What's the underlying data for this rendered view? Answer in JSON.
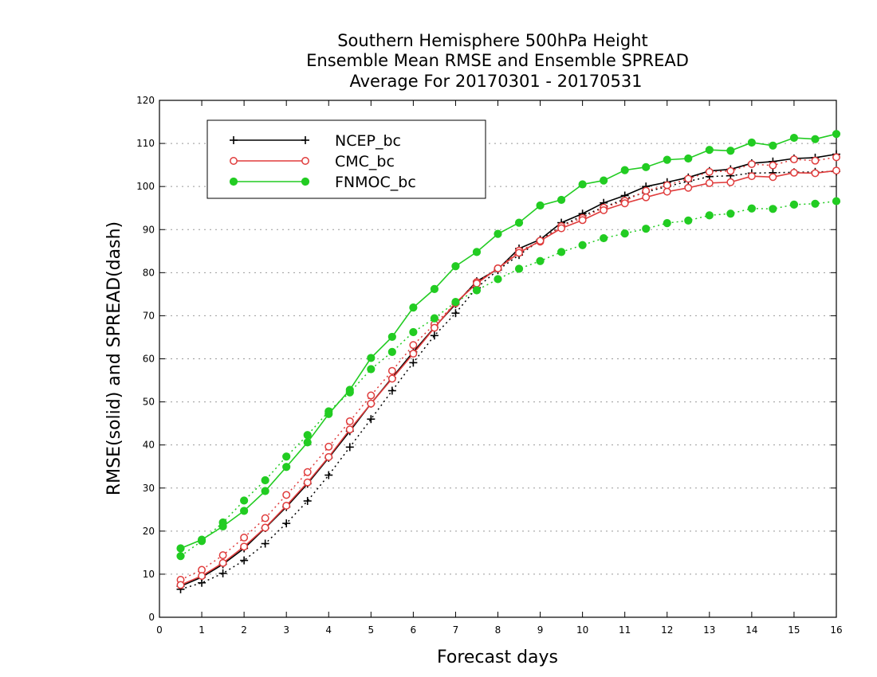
{
  "chart_data": {
    "type": "line",
    "title": [
      "Southern Hemisphere 500hPa Height",
      "Ensemble Mean RMSE and Ensemble SPREAD",
      "Average For 20170301 - 20170531"
    ],
    "xlabel": "Forecast days",
    "ylabel": "RMSE(solid) and SPREAD(dash)",
    "xlim": [
      0,
      16
    ],
    "ylim": [
      0,
      120
    ],
    "xticks": [
      0,
      1,
      2,
      3,
      4,
      5,
      6,
      7,
      8,
      9,
      10,
      11,
      12,
      13,
      14,
      15,
      16
    ],
    "yticks": [
      0,
      10,
      20,
      30,
      40,
      50,
      60,
      70,
      80,
      90,
      100,
      110,
      120
    ],
    "grid": "horizontal dotted",
    "legend_position": "top-left",
    "x": [
      0.5,
      1,
      1.5,
      2,
      2.5,
      3,
      3.5,
      4,
      4.5,
      5,
      5.5,
      6,
      6.5,
      7,
      7.5,
      8,
      8.5,
      9,
      9.5,
      10,
      10.5,
      11,
      11.5,
      12,
      12.5,
      13,
      13.5,
      14,
      14.5,
      15,
      15.5,
      16
    ],
    "series": [
      {
        "name": "NCEP_bc",
        "color": "#000000",
        "marker": "plus",
        "rmse": [
          7.2,
          9.3,
          12.3,
          16.0,
          20.7,
          25.6,
          31.0,
          37.0,
          43.2,
          49.6,
          55.6,
          61.6,
          67.3,
          72.7,
          78.0,
          80.8,
          85.6,
          87.7,
          91.6,
          93.7,
          96.2,
          97.9,
          100.0,
          101.0,
          102.1,
          103.6,
          104.0,
          105.4,
          105.8,
          106.5,
          106.7,
          107.5
        ],
        "spread": [
          6.5,
          8.0,
          10.2,
          13.2,
          17.1,
          21.8,
          27.0,
          33.0,
          39.5,
          46.0,
          52.6,
          59.1,
          65.4,
          70.6,
          76.5,
          80.6,
          84.1,
          87.5,
          90.9,
          93.2,
          95.2,
          97.1,
          98.7,
          100.0,
          101.2,
          102.3,
          102.5,
          103.1,
          103.2,
          103.3,
          103.4,
          103.5
        ]
      },
      {
        "name": "CMC_bc",
        "color": "#e03c3c",
        "marker": "open-circle",
        "rmse": [
          7.5,
          9.6,
          12.6,
          16.4,
          20.8,
          25.9,
          31.3,
          37.2,
          43.6,
          49.6,
          55.4,
          61.2,
          67.2,
          73.0,
          77.5,
          81.0,
          84.6,
          87.4,
          90.3,
          92.2,
          94.5,
          96.1,
          97.5,
          98.8,
          99.7,
          100.8,
          101.0,
          102.4,
          102.2,
          103.2,
          103.1,
          103.7
        ],
        "spread": [
          8.7,
          11.0,
          14.4,
          18.5,
          23.0,
          28.4,
          33.7,
          39.6,
          45.5,
          51.5,
          57.2,
          63.2,
          68.0,
          72.9,
          77.8,
          81.0,
          85.1,
          87.2,
          90.8,
          92.7,
          95.1,
          96.7,
          99.0,
          100.3,
          101.8,
          103.4,
          103.6,
          105.2,
          104.9,
          106.3,
          106.0,
          106.8
        ]
      },
      {
        "name": "FNMOC_bc",
        "color": "#22cc22",
        "marker": "filled-circle",
        "rmse": [
          16.0,
          18.0,
          21.1,
          24.7,
          29.3,
          34.9,
          40.6,
          47.2,
          52.8,
          60.2,
          65.1,
          71.9,
          76.2,
          81.5,
          84.8,
          89.0,
          91.6,
          95.6,
          96.9,
          100.5,
          101.4,
          103.8,
          104.5,
          106.2,
          106.5,
          108.5,
          108.3,
          110.2,
          109.5,
          111.3,
          111.0,
          112.2
        ],
        "spread": [
          14.2,
          17.7,
          22.0,
          27.1,
          31.8,
          37.3,
          42.3,
          47.8,
          52.2,
          57.6,
          61.6,
          66.2,
          69.4,
          73.2,
          75.9,
          78.5,
          80.9,
          82.7,
          84.8,
          86.4,
          88.0,
          89.1,
          90.2,
          91.5,
          92.1,
          93.3,
          93.7,
          94.9,
          94.8,
          95.8,
          96.0,
          96.6
        ]
      }
    ]
  }
}
